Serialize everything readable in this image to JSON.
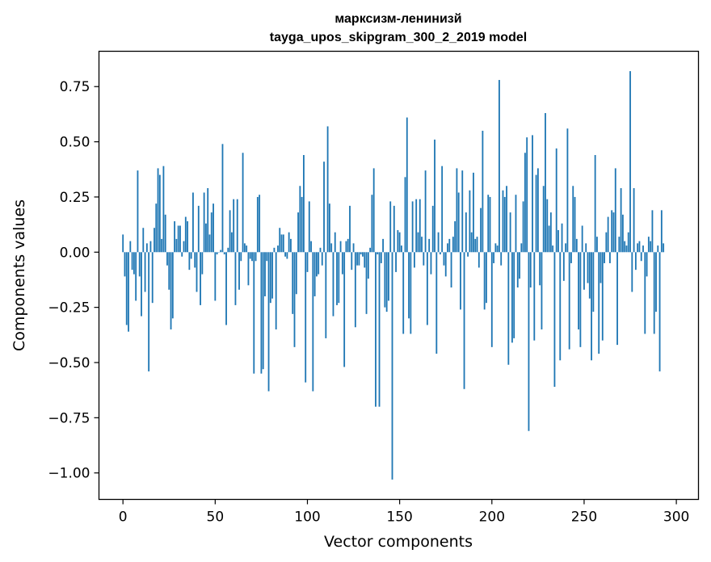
{
  "chart_data": {
    "type": "bar",
    "title": "марксизм-ленинизй",
    "subtitle": "tayga_upos_skipgram_300_2_2019 model",
    "xlabel": "Vector components",
    "ylabel": "Components values",
    "xlim": [
      -13,
      312
    ],
    "ylim": [
      -1.12,
      0.91
    ],
    "xticks": [
      0,
      50,
      100,
      150,
      200,
      250,
      300
    ],
    "yticks": [
      -1.0,
      -0.75,
      -0.5,
      -0.25,
      0.0,
      0.25,
      0.5,
      0.75
    ],
    "xtick_labels": [
      "0",
      "50",
      "100",
      "150",
      "200",
      "250",
      "300"
    ],
    "ytick_labels": [
      "−1.00",
      "−0.75",
      "−0.50",
      "−0.25",
      "0.00",
      "0.25",
      "0.50",
      "0.75"
    ],
    "bar_color": "#1f77b4",
    "grid": false,
    "values": [
      0.08,
      -0.11,
      -0.33,
      -0.36,
      0.05,
      -0.08,
      -0.1,
      -0.22,
      0.37,
      -0.11,
      -0.29,
      0.11,
      -0.18,
      0.04,
      -0.54,
      0.05,
      -0.23,
      0.11,
      0.22,
      0.38,
      0.35,
      0.06,
      0.39,
      0.17,
      -0.06,
      -0.17,
      -0.35,
      -0.3,
      0.14,
      0.06,
      0.12,
      0.12,
      -0.02,
      0.05,
      0.16,
      0.14,
      -0.08,
      -0.03,
      0.27,
      -0.07,
      -0.18,
      0.21,
      -0.24,
      -0.1,
      0.27,
      0.13,
      0.29,
      0.08,
      0.18,
      0.22,
      -0.22,
      -0.01,
      0.0,
      0.01,
      0.49,
      -0.01,
      -0.33,
      0.02,
      0.19,
      0.09,
      0.24,
      -0.24,
      0.24,
      -0.17,
      -0.04,
      0.45,
      0.04,
      0.03,
      -0.15,
      -0.03,
      -0.04,
      -0.55,
      -0.04,
      0.25,
      0.26,
      -0.55,
      -0.53,
      -0.2,
      -0.04,
      -0.63,
      -0.23,
      -0.21,
      0.02,
      -0.35,
      0.03,
      0.11,
      0.08,
      0.08,
      -0.02,
      -0.03,
      0.09,
      0.06,
      -0.28,
      -0.43,
      -0.19,
      0.18,
      0.3,
      0.25,
      0.44,
      -0.59,
      -0.09,
      0.23,
      0.05,
      -0.63,
      -0.2,
      -0.11,
      -0.1,
      0.02,
      -0.06,
      0.41,
      -0.39,
      0.57,
      0.22,
      0.04,
      -0.29,
      0.09,
      -0.24,
      -0.23,
      0.05,
      -0.1,
      -0.52,
      0.05,
      0.06,
      0.21,
      -0.08,
      0.04,
      -0.34,
      -0.06,
      -0.06,
      -0.01,
      -0.02,
      -0.07,
      -0.28,
      -0.12,
      0.02,
      0.26,
      0.38,
      -0.7,
      -0.01,
      -0.7,
      -0.05,
      0.06,
      -0.25,
      -0.27,
      -0.22,
      0.23,
      -1.03,
      0.21,
      -0.09,
      0.1,
      0.09,
      0.03,
      -0.37,
      0.34,
      0.61,
      -0.3,
      -0.37,
      0.23,
      -0.07,
      0.24,
      0.09,
      0.24,
      0.07,
      -0.06,
      0.37,
      -0.33,
      0.06,
      -0.1,
      0.21,
      0.51,
      -0.46,
      0.09,
      -0.01,
      0.39,
      -0.06,
      -0.11,
      0.04,
      0.06,
      -0.16,
      0.07,
      0.14,
      0.38,
      0.27,
      -0.26,
      0.37,
      -0.62,
      0.18,
      -0.02,
      0.28,
      0.09,
      0.36,
      0.06,
      0.07,
      -0.07,
      0.2,
      0.55,
      -0.26,
      -0.23,
      0.26,
      0.25,
      -0.43,
      -0.05,
      0.04,
      0.03,
      0.78,
      -0.06,
      0.28,
      0.25,
      0.3,
      -0.51,
      0.18,
      -0.41,
      -0.39,
      0.26,
      -0.16,
      -0.12,
      0.04,
      0.23,
      0.45,
      0.52,
      -0.81,
      -0.16,
      0.53,
      -0.4,
      0.35,
      0.38,
      -0.15,
      -0.35,
      0.3,
      0.63,
      0.24,
      0.12,
      0.18,
      0.03,
      -0.61,
      0.47,
      0.1,
      -0.49,
      0.13,
      -0.13,
      0.04,
      0.56,
      -0.44,
      -0.05,
      0.3,
      0.25,
      0.06,
      -0.35,
      -0.43,
      0.12,
      -0.17,
      0.04,
      -0.14,
      -0.21,
      -0.49,
      -0.27,
      0.44,
      0.07,
      -0.46,
      -0.14,
      -0.4,
      -0.05,
      0.09,
      0.16,
      -0.05,
      0.19,
      0.18,
      0.38,
      -0.42,
      0.07,
      0.29,
      0.17,
      0.05,
      0.03,
      0.09,
      0.82,
      -0.18,
      0.29,
      -0.08,
      0.04,
      0.05,
      -0.04,
      0.03,
      -0.37,
      -0.11,
      0.07,
      0.05,
      0.19,
      -0.37,
      -0.27,
      0.03,
      -0.54,
      0.19,
      0.04
    ]
  }
}
